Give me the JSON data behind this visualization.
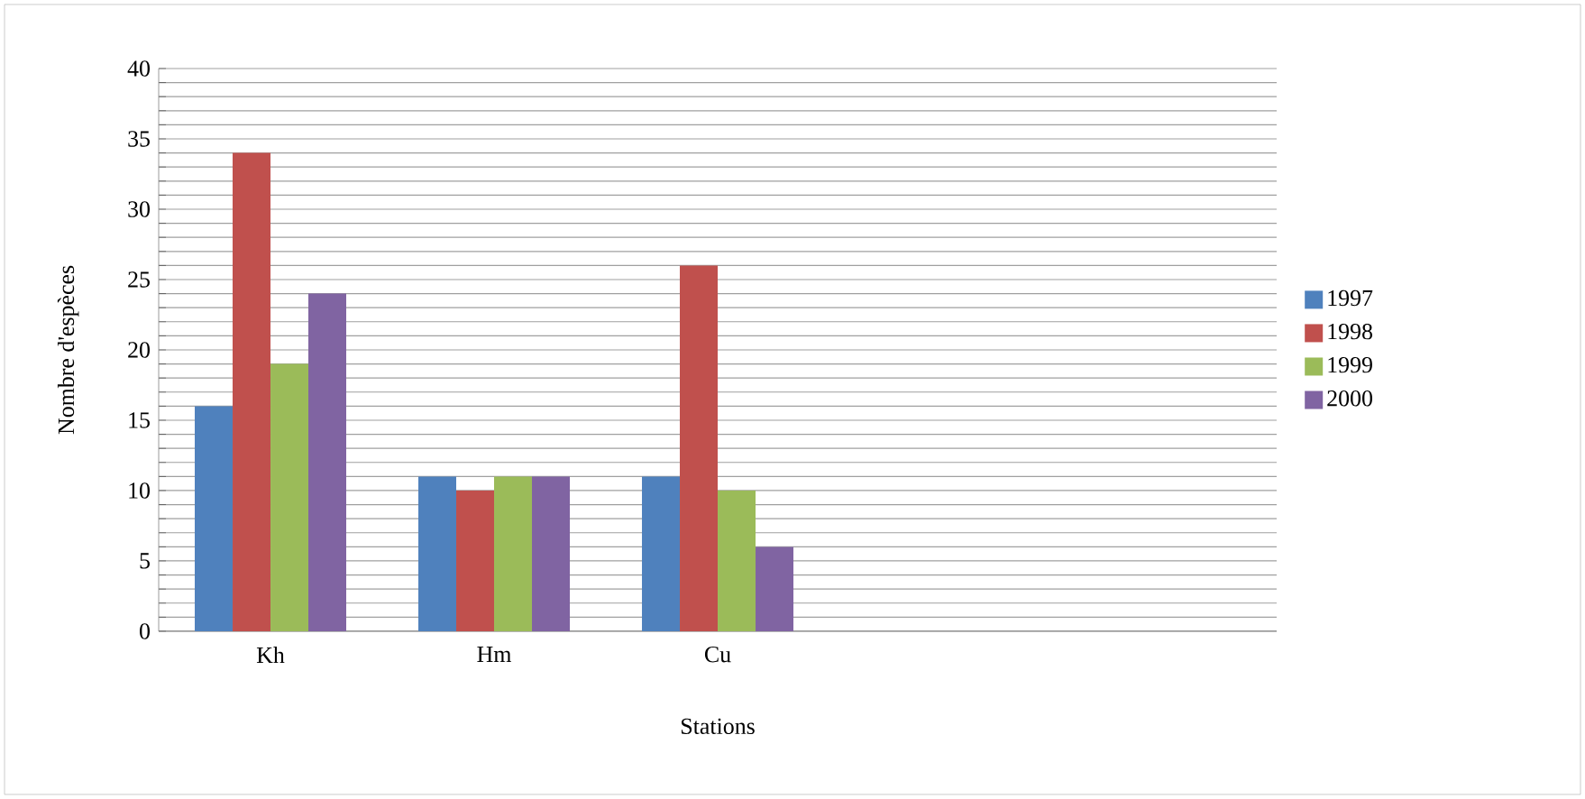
{
  "chart_data": {
    "type": "bar",
    "xlabel": "Stations",
    "ylabel": "Nombre d'espèces",
    "categories": [
      "Kh",
      "Hm",
      "Cu",
      null,
      null
    ],
    "series": [
      {
        "name": "1997",
        "color": "#4f81bd",
        "values": [
          16,
          11,
          11,
          null,
          null
        ]
      },
      {
        "name": "1998",
        "color": "#c0504d",
        "values": [
          34,
          10,
          26,
          null,
          null
        ]
      },
      {
        "name": "1999",
        "color": "#9bbb59",
        "values": [
          19,
          11,
          10,
          null,
          null
        ]
      },
      {
        "name": "2000",
        "color": "#8064a2",
        "values": [
          24,
          11,
          6,
          null,
          null
        ]
      }
    ],
    "ylim": [
      0,
      40
    ],
    "yticks": [
      0,
      {
        "value": 1,
        "label": null
      },
      {
        "value": 2,
        "label": null
      },
      {
        "value": 3,
        "label": null
      },
      {
        "value": 4,
        "label": null
      },
      5,
      {
        "value": 6,
        "label": null
      },
      {
        "value": 7,
        "label": null
      },
      {
        "value": 8,
        "label": null
      },
      {
        "value": 9,
        "label": null
      },
      10,
      {
        "value": 11,
        "label": null
      },
      {
        "value": 12,
        "label": null
      },
      {
        "value": 13,
        "label": null
      },
      {
        "value": 14,
        "label": null
      },
      15,
      {
        "value": 16,
        "label": null
      },
      {
        "value": 17,
        "label": null
      },
      {
        "value": 18,
        "label": null
      },
      {
        "value": 19,
        "label": null
      },
      20,
      {
        "value": 21,
        "label": null
      },
      {
        "value": 22,
        "label": null
      },
      {
        "value": 23,
        "label": null
      },
      {
        "value": 24,
        "label": null
      },
      25,
      {
        "value": 26,
        "label": null
      },
      {
        "value": 27,
        "label": null
      },
      {
        "value": 28,
        "label": null
      },
      {
        "value": 29,
        "label": null
      },
      30,
      {
        "value": 31,
        "label": null
      },
      {
        "value": 32,
        "label": null
      },
      {
        "value": 33,
        "label": null
      },
      {
        "value": 34,
        "label": null
      },
      35,
      {
        "value": 36,
        "label": null
      },
      {
        "value": 37,
        "label": null
      },
      {
        "value": 38,
        "label": null
      },
      {
        "value": 39,
        "label": null
      },
      40
    ],
    "grid": "y",
    "legend": "right"
  }
}
